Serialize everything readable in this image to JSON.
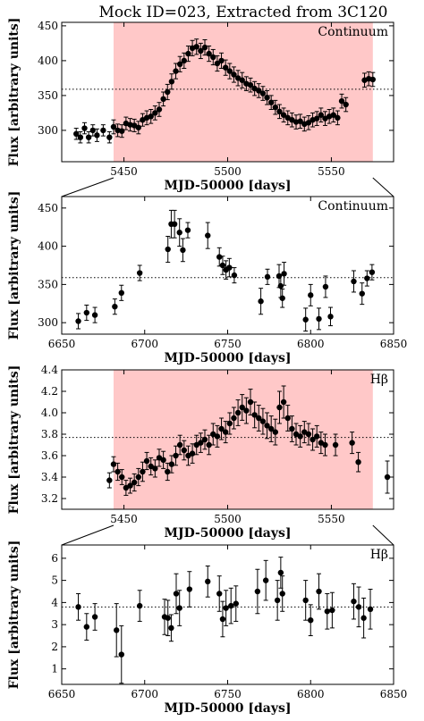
{
  "figure": {
    "title": "Mock ID=023, Extracted from 3C120"
  },
  "chart_data": [
    {
      "type": "scatter",
      "panel": "continuum-zoom",
      "title": "",
      "annotation": "Continuum",
      "xlabel": "MJD-50000 [days]",
      "ylabel": "Flux [arbitrary units]",
      "xlim": [
        5420,
        5580
      ],
      "ylim": [
        255,
        455
      ],
      "xticks": [
        5450,
        5500,
        5550
      ],
      "yticks": [
        300,
        350,
        400,
        450
      ],
      "mean_line": 359,
      "highlight_range": [
        5445,
        5570
      ],
      "highlight_color": "#ffc8c8",
      "series": [
        {
          "x": [
            5427,
            5429,
            5431,
            5433,
            5435,
            5437,
            5440,
            5443,
            5445,
            5447,
            5449,
            5451,
            5453,
            5455,
            5457,
            5459,
            5461,
            5463,
            5465,
            5467,
            5469,
            5471,
            5473,
            5475,
            5477,
            5479,
            5481,
            5483,
            5485,
            5487,
            5489,
            5491,
            5493,
            5495,
            5497,
            5499,
            5501,
            5503,
            5505,
            5507,
            5509,
            5511,
            5513,
            5515,
            5517,
            5519,
            5521,
            5523,
            5525,
            5527,
            5529,
            5531,
            5533,
            5535,
            5537,
            5539,
            5541,
            5543,
            5545,
            5547,
            5549,
            5551,
            5553,
            5555,
            5557,
            5566,
            5568,
            5570
          ],
          "y": [
            295,
            290,
            303,
            290,
            300,
            293,
            300,
            290,
            305,
            300,
            299,
            310,
            308,
            307,
            304,
            315,
            318,
            320,
            325,
            330,
            345,
            355,
            370,
            385,
            395,
            400,
            410,
            418,
            420,
            414,
            419,
            410,
            405,
            396,
            400,
            390,
            385,
            380,
            375,
            372,
            367,
            365,
            360,
            357,
            353,
            347,
            340,
            333,
            327,
            322,
            318,
            315,
            312,
            313,
            309,
            311,
            315,
            317,
            322,
            317,
            320,
            322,
            318,
            342,
            337,
            372,
            374,
            373
          ],
          "yerr": [
            8,
            8,
            8,
            8,
            8,
            9,
            8,
            8,
            10,
            9,
            9,
            9,
            9,
            9,
            9,
            9,
            10,
            10,
            10,
            10,
            10,
            11,
            11,
            11,
            11,
            11,
            11,
            11,
            11,
            11,
            11,
            11,
            11,
            11,
            11,
            11,
            11,
            11,
            11,
            11,
            10,
            10,
            10,
            10,
            10,
            10,
            10,
            10,
            10,
            10,
            10,
            10,
            10,
            10,
            10,
            10,
            10,
            10,
            10,
            10,
            10,
            10,
            10,
            10,
            10,
            10,
            10,
            10
          ]
        }
      ]
    },
    {
      "type": "scatter",
      "panel": "continuum",
      "title": "",
      "annotation": "Continuum",
      "xlabel": "MJD-50000 [days]",
      "ylabel": "Flux [arbitrary units]",
      "xlim": [
        6650,
        6850
      ],
      "ylim": [
        285,
        465
      ],
      "xticks": [
        6650,
        6700,
        6750,
        6800,
        6850
      ],
      "yticks": [
        300,
        350,
        400,
        450
      ],
      "mean_line": 359,
      "series": [
        {
          "x": [
            6660,
            6665,
            6670,
            6682,
            6686,
            6697,
            6714,
            6716,
            6718,
            6721,
            6723,
            6726,
            6738,
            6745,
            6747,
            6749,
            6751,
            6754,
            6770,
            6774,
            6781,
            6782,
            6783,
            6784,
            6797,
            6800,
            6805,
            6809,
            6812,
            6826,
            6831,
            6834,
            6837
          ],
          "y": [
            302,
            313,
            310,
            321,
            339,
            365,
            396,
            429,
            429,
            418,
            395,
            421,
            414,
            386,
            375,
            369,
            372,
            362,
            328,
            360,
            361,
            348,
            332,
            364,
            304,
            336,
            305,
            347,
            308,
            354,
            338,
            358,
            366
          ],
          "yerr": [
            10,
            10,
            10,
            10,
            10,
            10,
            17,
            18,
            18,
            18,
            15,
            10,
            17,
            12,
            12,
            12,
            12,
            10,
            17,
            10,
            15,
            15,
            12,
            15,
            15,
            14,
            14,
            14,
            12,
            14,
            14,
            10,
            10
          ]
        }
      ]
    },
    {
      "type": "scatter",
      "panel": "hbeta-zoom",
      "title": "",
      "annotation": "Hβ",
      "xlabel": "MJD-50000 [days]",
      "ylabel": "Flux [arbitrary units]",
      "xlim": [
        5420,
        5580
      ],
      "ylim": [
        3.1,
        4.4
      ],
      "xticks": [
        5450,
        5500,
        5550
      ],
      "yticks": [
        3.2,
        3.4,
        3.6,
        3.8,
        4.0,
        4.2,
        4.4
      ],
      "mean_line": 3.77,
      "highlight_range": [
        5445,
        5570
      ],
      "highlight_color": "#ffc8c8",
      "series": [
        {
          "x": [
            5443,
            5445,
            5447,
            5449,
            5451,
            5453,
            5455,
            5457,
            5459,
            5461,
            5463,
            5465,
            5467,
            5469,
            5471,
            5473,
            5475,
            5477,
            5479,
            5481,
            5483,
            5485,
            5487,
            5489,
            5491,
            5493,
            5495,
            5497,
            5499,
            5501,
            5503,
            5505,
            5507,
            5509,
            5511,
            5513,
            5515,
            5517,
            5519,
            5521,
            5523,
            5525,
            5527,
            5529,
            5531,
            5533,
            5535,
            5537,
            5539,
            5541,
            5543,
            5545,
            5547,
            5552,
            5560,
            5563,
            5577
          ],
          "y": [
            3.37,
            3.52,
            3.45,
            3.4,
            3.3,
            3.32,
            3.35,
            3.4,
            3.45,
            3.55,
            3.5,
            3.48,
            3.58,
            3.56,
            3.45,
            3.52,
            3.6,
            3.7,
            3.65,
            3.6,
            3.62,
            3.7,
            3.72,
            3.75,
            3.7,
            3.8,
            3.78,
            3.85,
            3.82,
            3.9,
            3.95,
            4.0,
            4.05,
            4.02,
            4.1,
            3.98,
            3.95,
            3.92,
            3.88,
            3.85,
            3.82,
            4.05,
            4.1,
            3.95,
            3.85,
            3.8,
            3.78,
            3.82,
            3.8,
            3.75,
            3.78,
            3.72,
            3.7,
            3.7,
            3.72,
            3.54,
            3.4
          ],
          "yerr": [
            0.07,
            0.07,
            0.08,
            0.07,
            0.07,
            0.07,
            0.08,
            0.08,
            0.09,
            0.08,
            0.08,
            0.08,
            0.08,
            0.08,
            0.08,
            0.08,
            0.09,
            0.09,
            0.09,
            0.09,
            0.09,
            0.09,
            0.09,
            0.09,
            0.09,
            0.1,
            0.1,
            0.1,
            0.1,
            0.1,
            0.1,
            0.12,
            0.12,
            0.12,
            0.12,
            0.12,
            0.12,
            0.12,
            0.12,
            0.12,
            0.12,
            0.15,
            0.15,
            0.12,
            0.12,
            0.1,
            0.1,
            0.1,
            0.1,
            0.1,
            0.1,
            0.1,
            0.1,
            0.1,
            0.1,
            0.09,
            0.15
          ]
        }
      ]
    },
    {
      "type": "scatter",
      "panel": "hbeta",
      "title": "",
      "annotation": "Hβ",
      "xlabel": "MJD-50000 [days]",
      "ylabel": "Flux [arbitrary units]",
      "xlim": [
        6650,
        6850
      ],
      "ylim": [
        0.3,
        6.6
      ],
      "xticks": [
        6650,
        6700,
        6750,
        6800,
        6850
      ],
      "yticks": [
        1,
        2,
        3,
        4,
        5,
        6
      ],
      "mean_line": 3.8,
      "series": [
        {
          "x": [
            6660,
            6665,
            6670,
            6683,
            6686,
            6697,
            6712,
            6714,
            6716,
            6719,
            6721,
            6727,
            6738,
            6745,
            6747,
            6749,
            6752,
            6755,
            6768,
            6773,
            6780,
            6782,
            6783,
            6797,
            6800,
            6805,
            6810,
            6813,
            6826,
            6829,
            6832,
            6836
          ],
          "y": [
            3.8,
            2.9,
            3.35,
            2.75,
            1.65,
            3.85,
            3.35,
            3.3,
            2.85,
            4.4,
            3.75,
            4.6,
            4.95,
            4.4,
            3.25,
            3.75,
            3.85,
            3.95,
            4.5,
            5.0,
            4.1,
            5.35,
            4.4,
            4.1,
            3.2,
            4.5,
            3.6,
            3.65,
            4.05,
            3.8,
            3.3,
            3.7
          ],
          "yerr": [
            0.6,
            0.6,
            0.6,
            1.2,
            1.3,
            0.7,
            0.8,
            0.8,
            0.6,
            0.9,
            0.8,
            0.8,
            0.7,
            0.8,
            0.8,
            0.8,
            0.8,
            0.8,
            1.0,
            0.9,
            0.9,
            0.7,
            0.8,
            0.9,
            0.7,
            0.8,
            0.8,
            0.8,
            0.8,
            0.9,
            0.9,
            0.9
          ]
        }
      ]
    }
  ]
}
